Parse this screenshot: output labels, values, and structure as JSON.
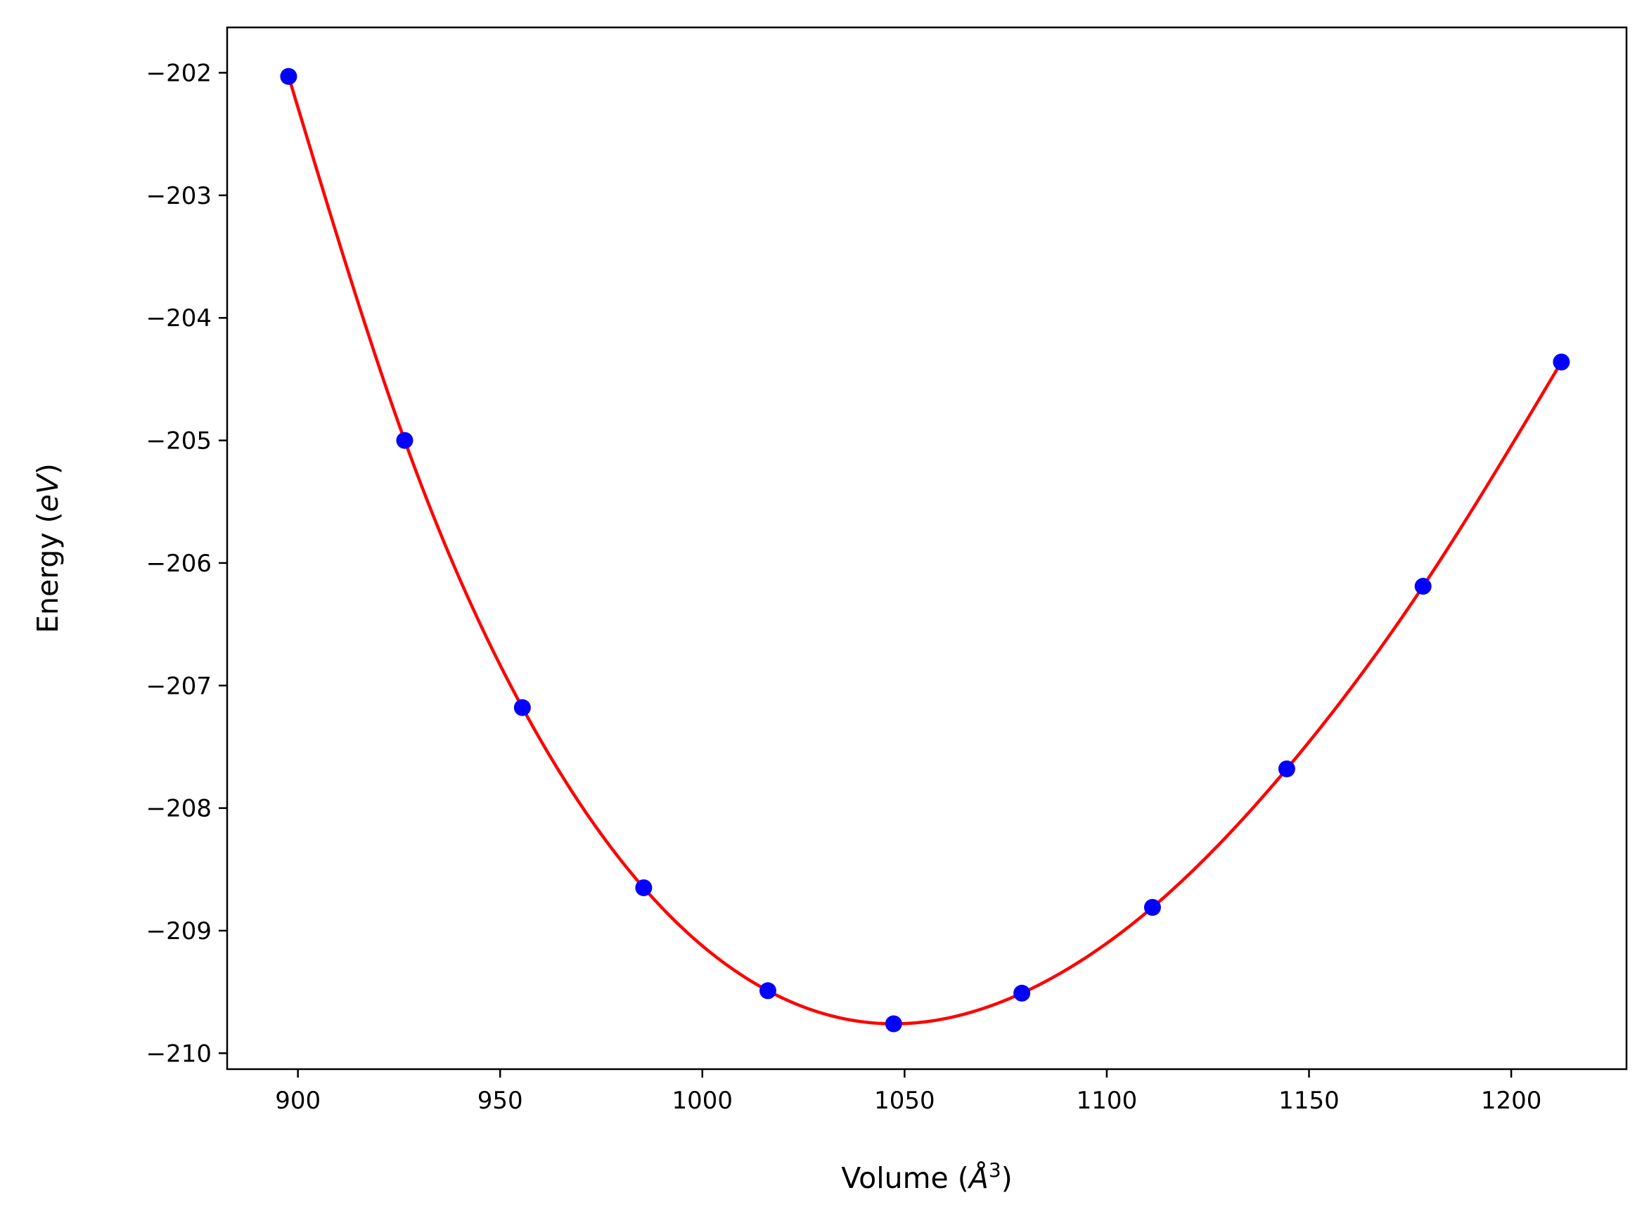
{
  "chart_data": {
    "type": "scatter",
    "title": "",
    "xlabel_prefix": "Volume (",
    "xlabel_unit": "Å",
    "xlabel_exp": "3",
    "xlabel_suffix": ")",
    "ylabel_prefix": "Energy (",
    "ylabel_unit": "eV",
    "ylabel_suffix": ")",
    "xlim": [
      882.5,
      1228.5
    ],
    "ylim": [
      -210.13,
      -201.63
    ],
    "xticks": [
      900,
      950,
      1000,
      1050,
      1100,
      1150,
      1200
    ],
    "xtick_labels": [
      "900",
      "950",
      "1000",
      "1050",
      "1100",
      "1150",
      "1200"
    ],
    "yticks": [
      -202,
      -203,
      -204,
      -205,
      -206,
      -207,
      -208,
      -209,
      -210
    ],
    "ytick_labels": [
      "−202",
      "−203",
      "−204",
      "−205",
      "−206",
      "−207",
      "−208",
      "−209",
      "−210"
    ],
    "grid": false,
    "series": [
      {
        "kind": "points",
        "color": "#0000ff",
        "x": [
          897.7,
          926.4,
          955.5,
          985.5,
          1016.2,
          1047.3,
          1079.0,
          1111.3,
          1144.5,
          1178.2,
          1212.4
        ],
        "y": [
          -202.03,
          -205.0,
          -207.18,
          -208.65,
          -209.49,
          -209.76,
          -209.51,
          -208.81,
          -207.68,
          -206.19,
          -204.36
        ]
      },
      {
        "kind": "fit-curve",
        "color": "#ff0000",
        "x": [
          897.7,
          926.4,
          955.5,
          985.5,
          1016.2,
          1047.3,
          1079.0,
          1111.3,
          1144.5,
          1178.2,
          1212.4
        ],
        "y": [
          -202.03,
          -205.0,
          -207.18,
          -208.65,
          -209.49,
          -209.76,
          -209.51,
          -208.81,
          -207.68,
          -206.19,
          -204.36
        ]
      }
    ]
  }
}
